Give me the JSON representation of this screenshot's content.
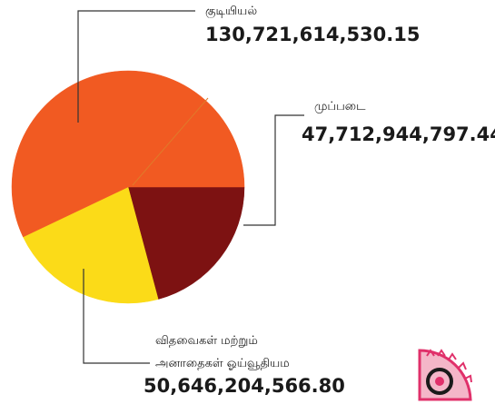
{
  "chart_data": {
    "type": "pie",
    "slices": [
      {
        "label": "குடியியல்",
        "value": 130721614530.15,
        "value_text": "130,721,614,530.15",
        "color": "#f15a22"
      },
      {
        "label": "முப்படை",
        "value": 47712944797.44,
        "value_text": "47,712,944,797.44",
        "color": "#7d1212"
      },
      {
        "label_lines": [
          "விதவைகள் மற்றும்",
          "அனாதைகள் ஓய்வூதியம"
        ],
        "value": 50646204566.8,
        "value_text": "50,646,204,566.80",
        "color": "#fbdb18"
      }
    ],
    "slice_outline": "#e07a2a",
    "leader_color": "#333333"
  },
  "logo": {
    "name": "corner-emblem",
    "colors": [
      "#f4b6c8",
      "#e0306a",
      "#1a1a1a"
    ]
  }
}
